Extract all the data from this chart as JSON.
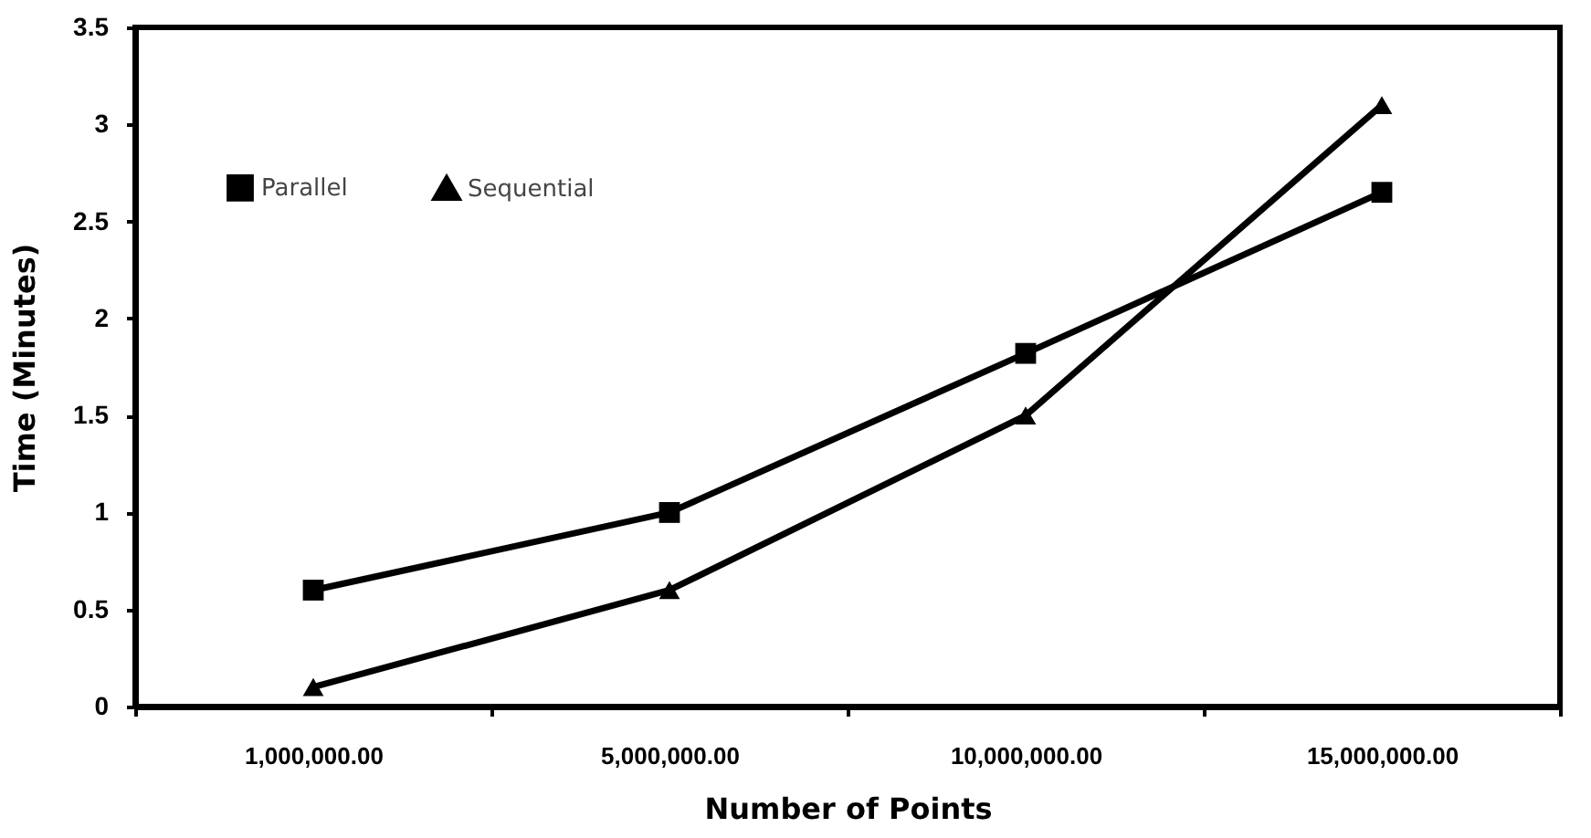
{
  "chart_data": {
    "type": "line",
    "xlabel": "Number of Points",
    "ylabel": "Time (Minutes)",
    "categories": [
      "1,000,000.00",
      "5,000,000.00",
      "10,000,000.00",
      "15,000,000.00"
    ],
    "series": [
      {
        "name": "Parallel",
        "color": "#000000",
        "marker": "square",
        "values": [
          0.6,
          1.0,
          1.82,
          2.65
        ]
      },
      {
        "name": "Sequential",
        "color": "#000000",
        "marker": "triangle",
        "values": [
          0.1,
          0.6,
          1.5,
          3.1
        ]
      }
    ],
    "ylim": [
      0,
      3.5
    ],
    "yticks": [
      0,
      0.5,
      1,
      1.5,
      2,
      2.5,
      3,
      3.5
    ],
    "grid": false,
    "legend": "top left",
    "line_style": "solid"
  }
}
